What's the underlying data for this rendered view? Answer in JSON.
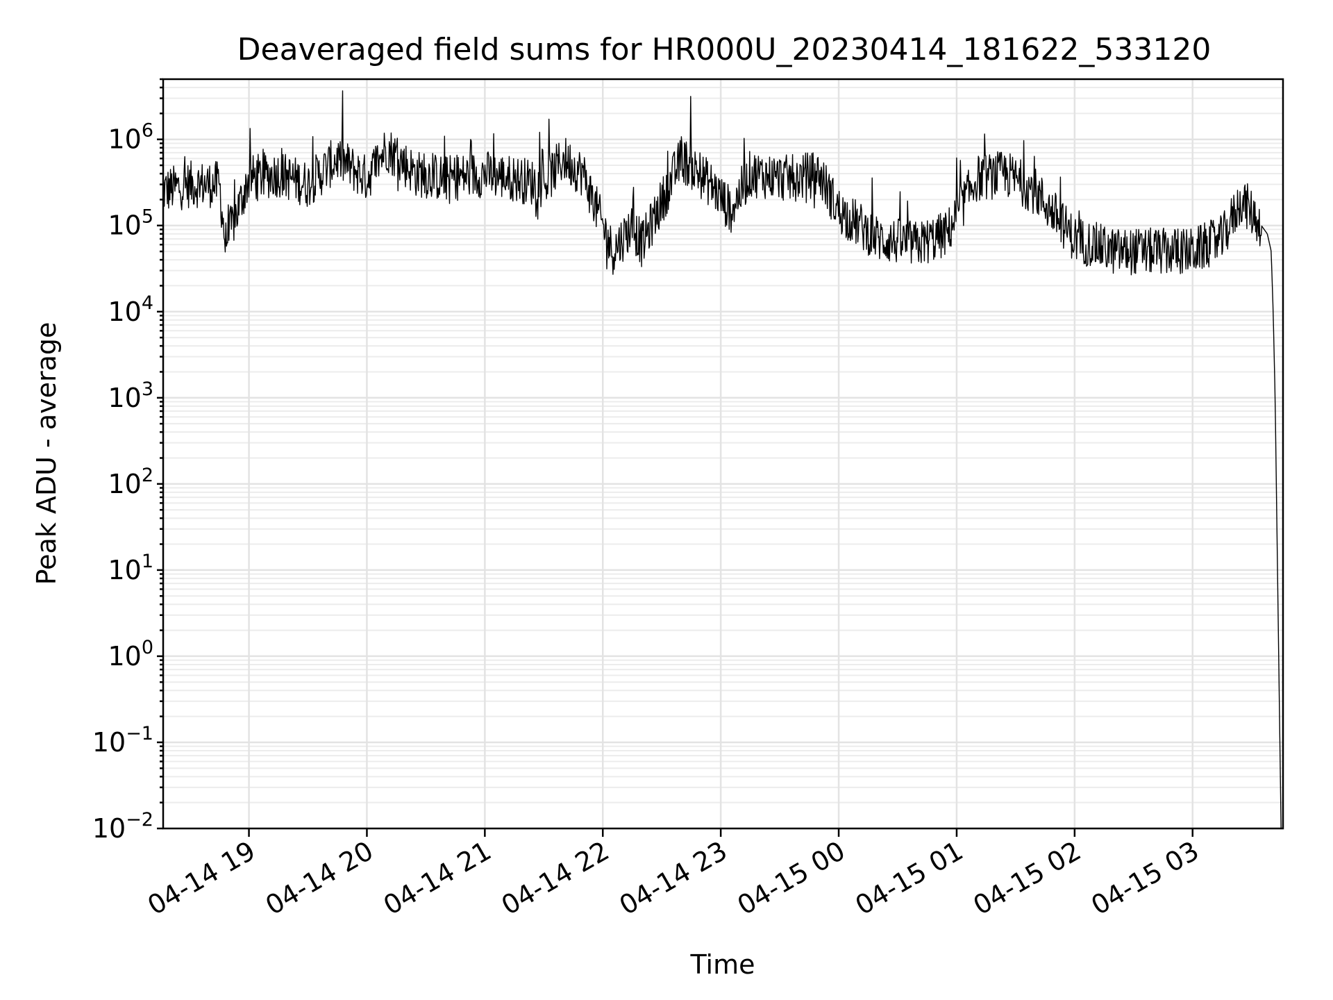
{
  "chart_data": {
    "type": "line",
    "title": "Deaveraged field sums for HR000U_20230414_181622_533120",
    "xlabel": "Time",
    "ylabel": "Peak ADU - average",
    "yscale": "log",
    "ylim": [
      0.01,
      5000000
    ],
    "xlim": [
      "2023-04-14 18:16:22",
      "2023-04-15 03:46:00"
    ],
    "grid": true,
    "x_ticks": [
      "04-14 19",
      "04-14 20",
      "04-14 21",
      "04-14 22",
      "04-14 23",
      "04-15 00",
      "04-15 01",
      "04-15 02",
      "04-15 03"
    ],
    "y_ticks": [
      {
        "base": "10",
        "exp": "−2",
        "value": 0.01
      },
      {
        "base": "10",
        "exp": "−1",
        "value": 0.1
      },
      {
        "base": "10",
        "exp": "0",
        "value": 1
      },
      {
        "base": "10",
        "exp": "1",
        "value": 10
      },
      {
        "base": "10",
        "exp": "2",
        "value": 100
      },
      {
        "base": "10",
        "exp": "3",
        "value": 1000
      },
      {
        "base": "10",
        "exp": "4",
        "value": 10000
      },
      {
        "base": "10",
        "exp": "5",
        "value": 100000
      },
      {
        "base": "10",
        "exp": "6",
        "value": 1000000
      }
    ],
    "series": [
      {
        "color": "#000000",
        "x": [
          "2023-04-14 18:16",
          "2023-04-14 18:30",
          "2023-04-14 18:45",
          "2023-04-14 18:48",
          "2023-04-14 19:00",
          "2023-04-14 19:15",
          "2023-04-14 19:30",
          "2023-04-14 19:45",
          "2023-04-14 20:00",
          "2023-04-14 20:10",
          "2023-04-14 20:25",
          "2023-04-14 20:40",
          "2023-04-14 21:00",
          "2023-04-14 21:15",
          "2023-04-14 21:30",
          "2023-04-14 21:40",
          "2023-04-14 21:50",
          "2023-04-14 22:05",
          "2023-04-14 22:15",
          "2023-04-14 22:20",
          "2023-04-14 22:40",
          "2023-04-14 22:55",
          "2023-04-14 23:05",
          "2023-04-14 23:15",
          "2023-04-14 23:35",
          "2023-04-14 23:50",
          "2023-04-15 00:00",
          "2023-04-15 00:20",
          "2023-04-15 00:40",
          "2023-04-15 00:55",
          "2023-04-15 01:10",
          "2023-04-15 01:25",
          "2023-04-15 01:40",
          "2023-04-15 02:00",
          "2023-04-15 02:20",
          "2023-04-15 02:40",
          "2023-04-15 03:00",
          "2023-04-15 03:15",
          "2023-04-15 03:25",
          "2023-04-15 03:35",
          "2023-04-15 03:38",
          "2023-04-15 03:40",
          "2023-04-15 03:41",
          "2023-04-15 03:42",
          "2023-04-15 03:45"
        ],
        "y": [
          250000,
          300000,
          300000,
          60000,
          350000,
          400000,
          300000,
          600000,
          350000,
          800000,
          400000,
          350000,
          400000,
          350000,
          300000,
          600000,
          400000,
          50000,
          100000,
          60000,
          600000,
          300000,
          150000,
          400000,
          350000,
          400000,
          150000,
          70000,
          60000,
          80000,
          350000,
          400000,
          250000,
          70000,
          50000,
          50000,
          50000,
          70000,
          200000,
          100000,
          80000,
          50000,
          10000,
          1000,
          0.01
        ]
      }
    ]
  }
}
